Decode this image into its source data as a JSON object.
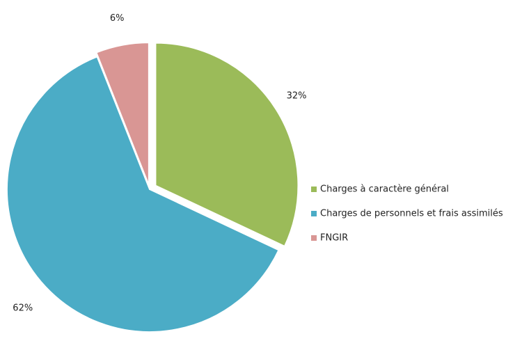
{
  "chart_data": {
    "type": "pie",
    "categories": [
      "Charges à caractère général",
      "Charges de personnels et frais assimilés",
      "FNGIR"
    ],
    "values": [
      32,
      62,
      6
    ],
    "value_labels": [
      "32%",
      "62%",
      "6%"
    ],
    "colors": [
      "#9bbb59",
      "#4bacc6",
      "#d99694"
    ],
    "legend": "right"
  }
}
